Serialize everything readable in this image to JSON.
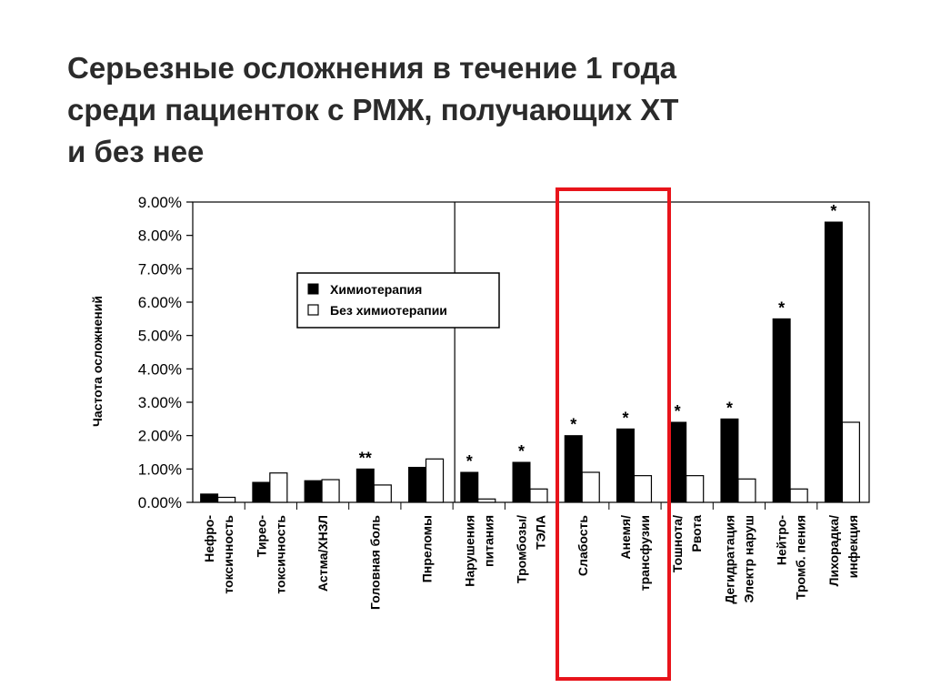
{
  "slide": {
    "title_lines": [
      "Серьезные осложнения в течение 1 года",
      "среди пациенток с РМЖ, получающих ХТ",
      "и без нее"
    ]
  },
  "colors": {
    "chemo": "#000000",
    "no_chemo": "#ffffff",
    "highlight_box": "#e8141b"
  },
  "chart_data": {
    "type": "bar",
    "ylabel": "Частота осложнений",
    "ylim": [
      0,
      9
    ],
    "y_ticks": [
      "0.00%",
      "1.00%",
      "2.00%",
      "3.00%",
      "4.00%",
      "5.00%",
      "6.00%",
      "7.00%",
      "8.00%",
      "9.00%"
    ],
    "categories": [
      [
        "Нефро-",
        "токсичность"
      ],
      [
        "Тирео-",
        "токсичность"
      ],
      [
        "Астма/ХНЗЛ"
      ],
      [
        "Головная боль"
      ],
      [
        "Пнреломы"
      ],
      [
        "Нарушения",
        "питания"
      ],
      [
        "Тромбозы/",
        "ТЭЛА"
      ],
      [
        "Слабость"
      ],
      [
        "Анемя/",
        "трансфузии"
      ],
      [
        "Тошнота/",
        "Рвота"
      ],
      [
        "Дегидратация",
        "Электр наруш"
      ],
      [
        "Нейтро-",
        "Тромб. пения"
      ],
      [
        "Лихорадка/",
        "инфекция"
      ]
    ],
    "series": [
      {
        "name": "Химиотерапия",
        "values": [
          0.25,
          0.6,
          0.65,
          1.0,
          1.05,
          0.9,
          1.2,
          2.0,
          2.2,
          2.4,
          2.5,
          5.5,
          8.4
        ]
      },
      {
        "name": "Без химиотерапии",
        "values": [
          0.15,
          0.88,
          0.68,
          0.52,
          1.3,
          0.1,
          0.4,
          0.9,
          0.8,
          0.8,
          0.7,
          0.4,
          2.4
        ]
      }
    ],
    "significance": [
      "",
      "",
      "",
      "**",
      "",
      "*",
      "*",
      "*",
      "*",
      "*",
      "*",
      "*",
      "*"
    ],
    "legend_position": "upper-left inside plot",
    "highlighted_categories": [
      "Слабость",
      "Анемя/ трансфузии"
    ]
  }
}
